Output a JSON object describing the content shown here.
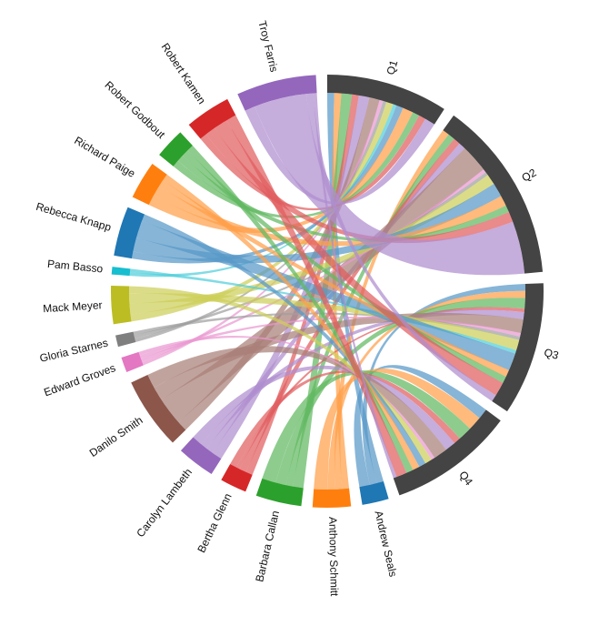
{
  "chart_data": {
    "type": "chord",
    "groups": [
      {
        "name": "Q1",
        "color": "#444444"
      },
      {
        "name": "Q2",
        "color": "#444444"
      },
      {
        "name": "Q3",
        "color": "#444444"
      },
      {
        "name": "Q4",
        "color": "#444444"
      },
      {
        "name": "Andrew Seals",
        "color": "#1f77b4"
      },
      {
        "name": "Anthony Schmitt",
        "color": "#ff7f0e"
      },
      {
        "name": "Barbara Callan",
        "color": "#2ca02c"
      },
      {
        "name": "Bertha Glenn",
        "color": "#d62728"
      },
      {
        "name": "Carolyn Lambeth",
        "color": "#9467bd"
      },
      {
        "name": "Danilo Smith",
        "color": "#8c564b"
      },
      {
        "name": "Edward Groves",
        "color": "#e377c2"
      },
      {
        "name": "Gloria Starnes",
        "color": "#7f7f7f"
      },
      {
        "name": "Mack Meyer",
        "color": "#bcbd22"
      },
      {
        "name": "Pam Basso",
        "color": "#17becf"
      },
      {
        "name": "Rebecca Knapp",
        "color": "#1f77b4"
      },
      {
        "name": "Richard Paige",
        "color": "#ff7f0e"
      },
      {
        "name": "Robert Godbout",
        "color": "#2ca02c"
      },
      {
        "name": "Robert Kamen",
        "color": "#d62728"
      },
      {
        "name": "Troy Farris",
        "color": "#9467bd"
      }
    ],
    "flows_by_quarter": {
      "quarters": [
        "Q1",
        "Q2",
        "Q3",
        "Q4"
      ],
      "rows": {
        "Andrew Seals": [
          2,
          0,
          2,
          3
        ],
        "Anthony Schmitt": [
          2,
          2,
          2,
          4
        ],
        "Barbara Callan": [
          3,
          2,
          3,
          4
        ],
        "Bertha Glenn": [
          2,
          2,
          1,
          2
        ],
        "Carolyn Lambeth": [
          3,
          2,
          2,
          3
        ],
        "Danilo Smith": [
          3,
          8,
          4,
          4
        ],
        "Edward Groves": [
          1,
          1,
          1,
          1
        ],
        "Gloria Starnes": [
          1,
          1,
          1,
          0
        ],
        "Mack Meyer": [
          2,
          3,
          3,
          2
        ],
        "Pam Basso": [
          1,
          0,
          1,
          0
        ],
        "Rebecca Knapp": [
          2,
          4,
          5,
          2
        ],
        "Richard Paige": [
          3,
          3,
          2,
          2
        ],
        "Robert Godbout": [
          2,
          2,
          2,
          2
        ],
        "Robert Kamen": [
          2,
          3,
          4,
          3
        ],
        "Troy Farris": [
          3,
          15,
          2,
          1
        ]
      }
    }
  }
}
